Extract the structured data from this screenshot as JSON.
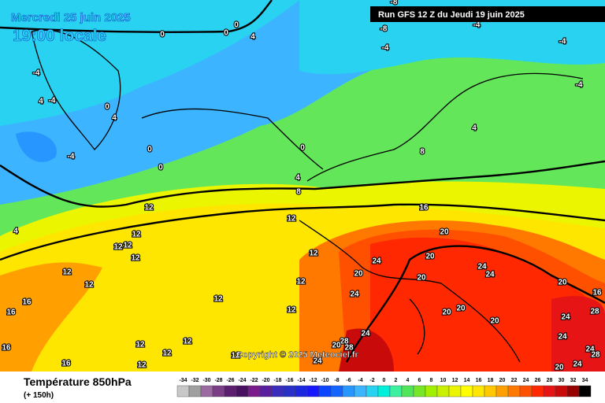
{
  "header": {
    "date": "Mercredi 25 juin 2025",
    "time": "19:00 locale",
    "run": "Run GFS 12 Z du Jeudi 19 juin 2025"
  },
  "copyright": "Copyright © 2025 Meteociel.fr",
  "footer": {
    "title": "Température 850hPa",
    "lead": "(+ 150h)"
  },
  "legend": {
    "ticks": [
      -34,
      -32,
      -30,
      -28,
      -26,
      -24,
      -22,
      -20,
      -18,
      -16,
      -14,
      -12,
      -10,
      -8,
      -6,
      -4,
      -2,
      0,
      2,
      4,
      6,
      8,
      10,
      12,
      14,
      16,
      18,
      20,
      22,
      24,
      26,
      28,
      30,
      32,
      34
    ],
    "colors": [
      "#c8c8c8",
      "#a0a0a0",
      "#9a6aa0",
      "#7a3d86",
      "#5c1e6e",
      "#481060",
      "#7a1c8c",
      "#5a1f9e",
      "#3a2dbb",
      "#2830c8",
      "#1c28e0",
      "#1818ff",
      "#0a46ff",
      "#1464ff",
      "#2896ff",
      "#3cb4ff",
      "#28d2f0",
      "#00f0dc",
      "#3cf0a0",
      "#50e65a",
      "#78e628",
      "#a0f000",
      "#c8f000",
      "#ebf500",
      "#ffff00",
      "#ffe600",
      "#ffc800",
      "#ffa000",
      "#ff7800",
      "#ff5000",
      "#ff2800",
      "#e61414",
      "#c80a0a",
      "#960000",
      "#000000"
    ]
  },
  "map": {
    "contour_labels": [
      0,
      0,
      0,
      4,
      -8,
      -8,
      -4,
      -4,
      -4,
      -4,
      0,
      4,
      -4,
      4,
      -4,
      0,
      0,
      -4,
      0,
      4,
      8,
      4,
      8,
      4,
      12,
      12,
      16,
      12,
      12,
      12,
      12,
      12,
      12,
      12,
      24,
      20,
      20,
      20,
      20,
      12,
      24,
      24,
      24,
      20,
      16,
      12,
      12,
      20,
      20,
      20,
      24,
      28,
      16,
      16,
      16,
      12,
      12,
      12,
      12,
      24,
      24,
      24,
      28,
      20,
      24,
      16,
      12,
      28,
      20,
      28,
      24
    ]
  }
}
